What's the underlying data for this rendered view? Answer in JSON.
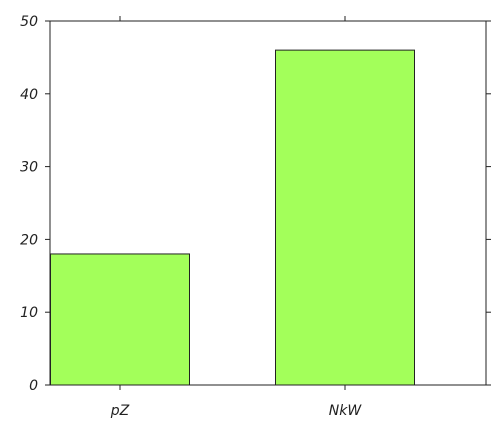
{
  "chart_data": {
    "type": "bar",
    "categories": [
      "pZ",
      "NkW"
    ],
    "values": [
      18,
      46
    ],
    "ylim": [
      0,
      50
    ],
    "yticks": [
      0,
      10,
      20,
      30,
      40,
      50
    ],
    "grid": false,
    "bar_color": "#a3ff5a",
    "axis_color": "#222222"
  }
}
